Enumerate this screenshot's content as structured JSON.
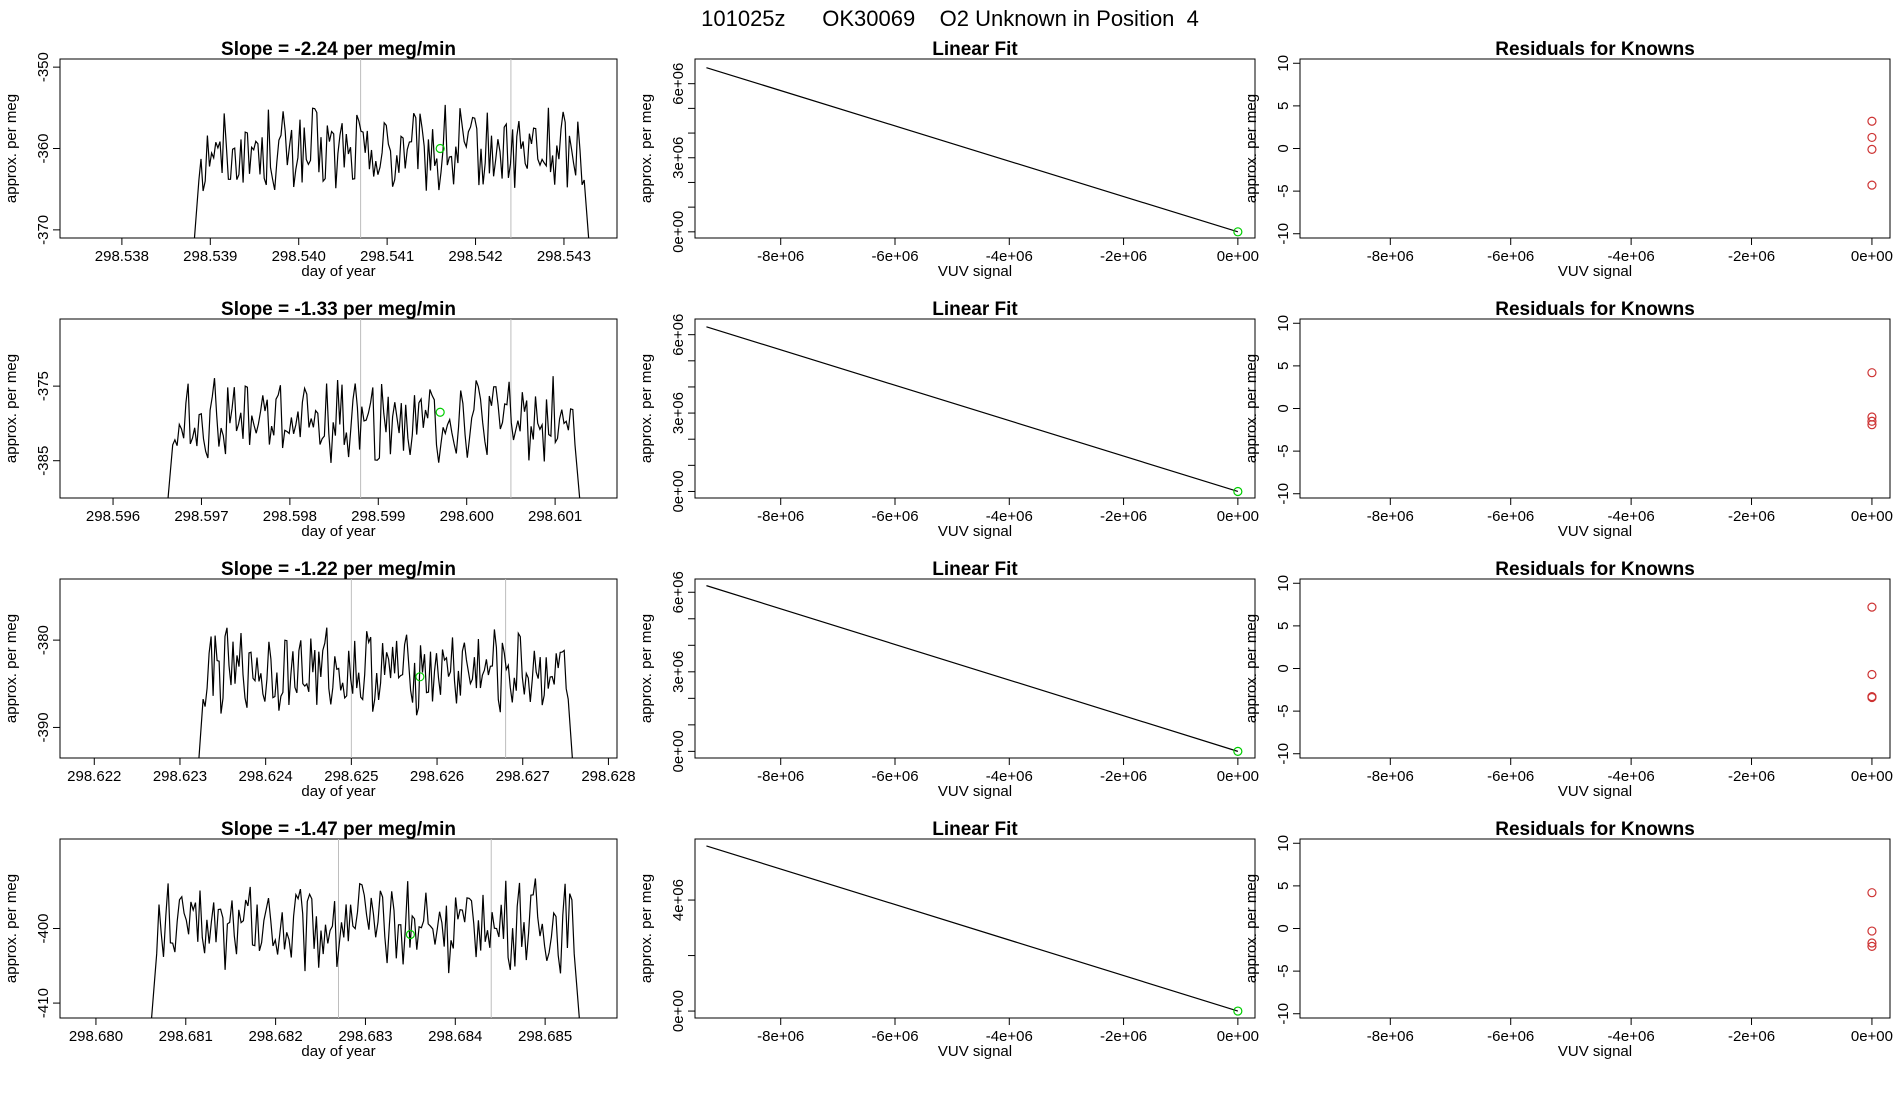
{
  "figure_title": "101025z      OK30069    O2 Unknown in Position  4",
  "colors": {
    "line": "#000000",
    "vline": "#bebebe",
    "unknown_point": "#00cd00",
    "known_point": "#cd3333"
  },
  "chart_data": [
    {
      "type": "line",
      "panel": "timeseries",
      "row": 0,
      "title": "Slope =  -2.24  per meg/min",
      "xlabel": "day of year",
      "ylabel": "approx. per meg",
      "xlim": [
        298.5373,
        298.5436
      ],
      "ylim": [
        -371,
        -349
      ],
      "xticks": [
        298.538,
        298.539,
        298.54,
        298.541,
        298.542,
        298.543
      ],
      "xtick_labels": [
        "298.538",
        "298.539",
        "298.540",
        "298.541",
        "298.542",
        "298.543"
      ],
      "yticks": [
        -370,
        -360,
        -350
      ],
      "ytick_labels": [
        "-370",
        "-360",
        "-350"
      ],
      "start": 298.5388,
      "end": 298.5433,
      "center": -360.5,
      "amplitude": 4.5,
      "vlines": [
        298.5407,
        298.5424
      ],
      "unknown_point": {
        "x": 298.5416,
        "y": -360.0
      }
    },
    {
      "type": "line",
      "panel": "timeseries",
      "row": 1,
      "title": "Slope =  -1.33  per meg/min",
      "xlabel": "day of year",
      "ylabel": "approx. per meg",
      "xlim": [
        298.5954,
        298.6017
      ],
      "ylim": [
        -390,
        -366
      ],
      "xticks": [
        298.596,
        298.597,
        298.598,
        298.599,
        298.6,
        298.601
      ],
      "xtick_labels": [
        "298.596",
        "298.597",
        "298.598",
        "298.599",
        "298.600",
        "298.601"
      ],
      "yticks": [
        -385,
        -375
      ],
      "ytick_labels": [
        "-385",
        "-375"
      ],
      "start": 298.5966,
      "end": 298.6013,
      "center": -379.5,
      "amplitude": 4.5,
      "vlines": [
        298.5988,
        298.6005
      ],
      "unknown_point": {
        "x": 298.5997,
        "y": -378.5
      }
    },
    {
      "type": "line",
      "panel": "timeseries",
      "row": 2,
      "title": "Slope =  -1.22  per meg/min",
      "xlabel": "day of year",
      "ylabel": "approx. per meg",
      "xlim": [
        298.6216,
        298.6281
      ],
      "ylim": [
        -393.5,
        -373
      ],
      "xticks": [
        298.622,
        298.623,
        298.624,
        298.625,
        298.626,
        298.627,
        298.628
      ],
      "xtick_labels": [
        "298.622",
        "298.623",
        "298.624",
        "298.625",
        "298.626",
        "298.627",
        "298.628"
      ],
      "yticks": [
        -390,
        -380
      ],
      "ytick_labels": [
        "-390",
        "-380"
      ],
      "start": 298.6232,
      "end": 298.6276,
      "center": -383.5,
      "amplitude": 4.0,
      "vlines": [
        298.625,
        298.6268
      ],
      "unknown_point": {
        "x": 298.6258,
        "y": -384.2
      }
    },
    {
      "type": "line",
      "panel": "timeseries",
      "row": 3,
      "title": "Slope =  -1.47  per meg/min",
      "xlabel": "day of year",
      "ylabel": "approx. per meg",
      "xlim": [
        298.6796,
        298.6858
      ],
      "ylim": [
        -412,
        -388
      ],
      "xticks": [
        298.68,
        298.681,
        298.682,
        298.683,
        298.684,
        298.685
      ],
      "xtick_labels": [
        "298.680",
        "298.681",
        "298.682",
        "298.683",
        "298.684",
        "298.685"
      ],
      "yticks": [
        -410,
        -400
      ],
      "ytick_labels": [
        "-410",
        "-400"
      ],
      "start": 298.6806,
      "end": 298.6854,
      "center": -399.5,
      "amplitude": 5.0,
      "vlines": [
        298.6827,
        298.6844
      ],
      "unknown_point": {
        "x": 298.6835,
        "y": -400.8
      }
    },
    {
      "type": "line",
      "panel": "fit",
      "row": 0,
      "title": "Linear Fit",
      "xlabel": "VUV signal",
      "ylabel": "approx. per meg",
      "xlim": [
        -9500000.0,
        300000.0
      ],
      "ylim": [
        -250000.0,
        7000000.0
      ],
      "xticks": [
        -8000000.0,
        -6000000.0,
        -4000000.0,
        -2000000.0,
        0
      ],
      "xtick_labels": [
        "-8e+06",
        "-6e+06",
        "-4e+06",
        "-2e+06",
        "0e+00"
      ],
      "yticks": [
        0,
        3000000.0,
        6000000.0
      ],
      "ytick_labels": [
        "0e+00",
        "3e+06",
        "6e+06"
      ],
      "minor_yticks": [
        1000000.0,
        2000000.0,
        4000000.0,
        5000000.0
      ],
      "fit_line": {
        "x": [
          -9300000.0,
          0
        ],
        "y": [
          6650000.0,
          0
        ]
      },
      "point": {
        "x": 0,
        "y": 0
      }
    },
    {
      "type": "line",
      "panel": "fit",
      "row": 1,
      "title": "Linear Fit",
      "xlabel": "VUV signal",
      "ylabel": "approx. per meg",
      "xlim": [
        -9500000.0,
        300000.0
      ],
      "ylim": [
        -250000.0,
        6600000.0
      ],
      "xticks": [
        -8000000.0,
        -6000000.0,
        -4000000.0,
        -2000000.0,
        0
      ],
      "xtick_labels": [
        "-8e+06",
        "-6e+06",
        "-4e+06",
        "-2e+06",
        "0e+00"
      ],
      "yticks": [
        0,
        3000000.0,
        6000000.0
      ],
      "ytick_labels": [
        "0e+00",
        "3e+06",
        "6e+06"
      ],
      "minor_yticks": [
        1000000.0,
        2000000.0,
        4000000.0,
        5000000.0
      ],
      "fit_line": {
        "x": [
          -9300000.0,
          0
        ],
        "y": [
          6300000.0,
          0
        ]
      },
      "point": {
        "x": 0,
        "y": 0
      }
    },
    {
      "type": "line",
      "panel": "fit",
      "row": 2,
      "title": "Linear Fit",
      "xlabel": "VUV signal",
      "ylabel": "approx. per meg",
      "xlim": [
        -9500000.0,
        300000.0
      ],
      "ylim": [
        -250000.0,
        6500000.0
      ],
      "xticks": [
        -8000000.0,
        -6000000.0,
        -4000000.0,
        -2000000.0,
        0
      ],
      "xtick_labels": [
        "-8e+06",
        "-6e+06",
        "-4e+06",
        "-2e+06",
        "0e+00"
      ],
      "yticks": [
        0,
        3000000.0,
        6000000.0
      ],
      "ytick_labels": [
        "0e+00",
        "3e+06",
        "6e+06"
      ],
      "minor_yticks": [
        1000000.0,
        2000000.0,
        4000000.0,
        5000000.0
      ],
      "fit_line": {
        "x": [
          -9300000.0,
          0
        ],
        "y": [
          6250000.0,
          0
        ]
      },
      "point": {
        "x": 0,
        "y": 0
      }
    },
    {
      "type": "line",
      "panel": "fit",
      "row": 3,
      "title": "Linear Fit",
      "xlabel": "VUV signal",
      "ylabel": "approx. per meg",
      "xlim": [
        -9500000.0,
        300000.0
      ],
      "ylim": [
        -250000.0,
        6200000.0
      ],
      "xticks": [
        -8000000.0,
        -6000000.0,
        -4000000.0,
        -2000000.0,
        0
      ],
      "xtick_labels": [
        "-8e+06",
        "-6e+06",
        "-4e+06",
        "-2e+06",
        "0e+00"
      ],
      "yticks": [
        0,
        4000000.0
      ],
      "ytick_labels": [
        "0e+00",
        "4e+06"
      ],
      "minor_yticks": [
        2000000.0
      ],
      "fit_line": {
        "x": [
          -9300000.0,
          0
        ],
        "y": [
          5950000.0,
          0
        ]
      },
      "point": {
        "x": 0,
        "y": 0
      }
    },
    {
      "type": "scatter",
      "panel": "residuals",
      "row": 0,
      "title": "Residuals for Knowns",
      "xlabel": "VUV signal",
      "ylabel": "approx. per meg",
      "xlim": [
        -9500000.0,
        300000.0
      ],
      "ylim": [
        -10.5,
        10.5
      ],
      "xticks": [
        -8000000.0,
        -6000000.0,
        -4000000.0,
        -2000000.0,
        0
      ],
      "xtick_labels": [
        "-8e+06",
        "-6e+06",
        "-4e+06",
        "-2e+06",
        "0e+00"
      ],
      "yticks": [
        -10,
        -5,
        0,
        5,
        10
      ],
      "ytick_labels": [
        "-10",
        "-5",
        "0",
        "5",
        "10"
      ],
      "points": [
        {
          "x": 0,
          "y": 3.2
        },
        {
          "x": 0,
          "y": 1.3
        },
        {
          "x": 0,
          "y": -0.1
        },
        {
          "x": 0,
          "y": -4.3
        }
      ]
    },
    {
      "type": "scatter",
      "panel": "residuals",
      "row": 1,
      "title": "Residuals for Knowns",
      "xlabel": "VUV signal",
      "ylabel": "approx. per meg",
      "xlim": [
        -9500000.0,
        300000.0
      ],
      "ylim": [
        -10.5,
        10.5
      ],
      "xticks": [
        -8000000.0,
        -6000000.0,
        -4000000.0,
        -2000000.0,
        0
      ],
      "xtick_labels": [
        "-8e+06",
        "-6e+06",
        "-4e+06",
        "-2e+06",
        "0e+00"
      ],
      "yticks": [
        -10,
        -5,
        0,
        5,
        10
      ],
      "ytick_labels": [
        "-10",
        "-5",
        "0",
        "5",
        "10"
      ],
      "points": [
        {
          "x": 0,
          "y": 4.2
        },
        {
          "x": 0,
          "y": -1.0
        },
        {
          "x": 0,
          "y": -1.5
        },
        {
          "x": 0,
          "y": -1.9
        }
      ]
    },
    {
      "type": "scatter",
      "panel": "residuals",
      "row": 2,
      "title": "Residuals for Knowns",
      "xlabel": "VUV signal",
      "ylabel": "approx. per meg",
      "xlim": [
        -9500000.0,
        300000.0
      ],
      "ylim": [
        -10.5,
        10.5
      ],
      "xticks": [
        -8000000.0,
        -6000000.0,
        -4000000.0,
        -2000000.0,
        0
      ],
      "xtick_labels": [
        "-8e+06",
        "-6e+06",
        "-4e+06",
        "-2e+06",
        "0e+00"
      ],
      "yticks": [
        -10,
        -5,
        0,
        5,
        10
      ],
      "ytick_labels": [
        "-10",
        "-5",
        "0",
        "5",
        "10"
      ],
      "points": [
        {
          "x": 0,
          "y": 7.2
        },
        {
          "x": 0,
          "y": -0.7
        },
        {
          "x": 0,
          "y": -3.3
        },
        {
          "x": 0,
          "y": -3.4
        }
      ]
    },
    {
      "type": "scatter",
      "panel": "residuals",
      "row": 3,
      "title": "Residuals for Knowns",
      "xlabel": "VUV signal",
      "ylabel": "approx. per meg",
      "xlim": [
        -9500000.0,
        300000.0
      ],
      "ylim": [
        -10.5,
        10.5
      ],
      "xticks": [
        -8000000.0,
        -6000000.0,
        -4000000.0,
        -2000000.0,
        0
      ],
      "xtick_labels": [
        "-8e+06",
        "-6e+06",
        "-4e+06",
        "-2e+06",
        "0e+00"
      ],
      "yticks": [
        -10,
        -5,
        0,
        5,
        10
      ],
      "ytick_labels": [
        "-10",
        "-5",
        "0",
        "5",
        "10"
      ],
      "points": [
        {
          "x": 0,
          "y": 4.2
        },
        {
          "x": 0,
          "y": -0.3
        },
        {
          "x": 0,
          "y": -1.7
        },
        {
          "x": 0,
          "y": -2.1
        }
      ]
    }
  ]
}
